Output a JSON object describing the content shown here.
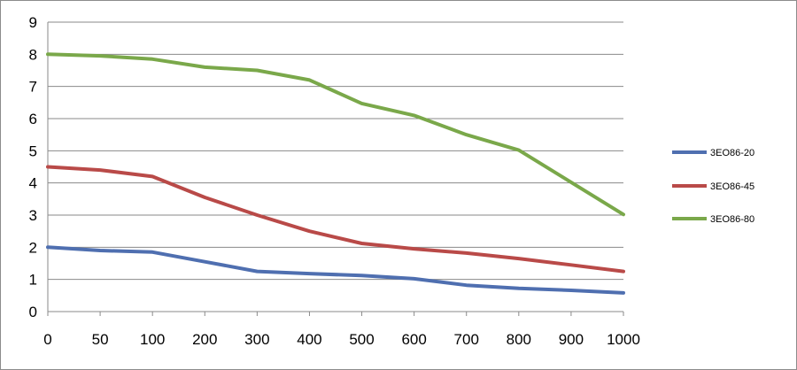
{
  "chart_data": {
    "type": "line",
    "title": "",
    "xlabel": "",
    "ylabel": "",
    "x": [
      "0",
      "50",
      "100",
      "200",
      "300",
      "400",
      "500",
      "600",
      "700",
      "800",
      "900",
      "1000"
    ],
    "ylim": [
      0,
      9
    ],
    "yticks": [
      "0",
      "1",
      "2",
      "3",
      "4",
      "5",
      "6",
      "7",
      "8",
      "9"
    ],
    "grid": "horizontal",
    "legend_position": "right",
    "series": [
      {
        "name": "3EO86-20",
        "color": "#4f6fb0",
        "values": [
          2.0,
          1.9,
          1.85,
          1.55,
          1.25,
          1.18,
          1.12,
          1.02,
          0.82,
          0.72,
          0.66,
          0.58
        ]
      },
      {
        "name": "3EO86-45",
        "color": "#b94a48",
        "values": [
          4.5,
          4.4,
          4.2,
          3.55,
          3.0,
          2.5,
          2.12,
          1.95,
          1.82,
          1.65,
          1.45,
          1.25
        ]
      },
      {
        "name": "3EO86-80",
        "color": "#7aa84a",
        "values": [
          8.0,
          7.95,
          7.85,
          7.6,
          7.5,
          7.2,
          6.47,
          6.1,
          5.5,
          5.02,
          4.02,
          3.02
        ]
      }
    ]
  }
}
